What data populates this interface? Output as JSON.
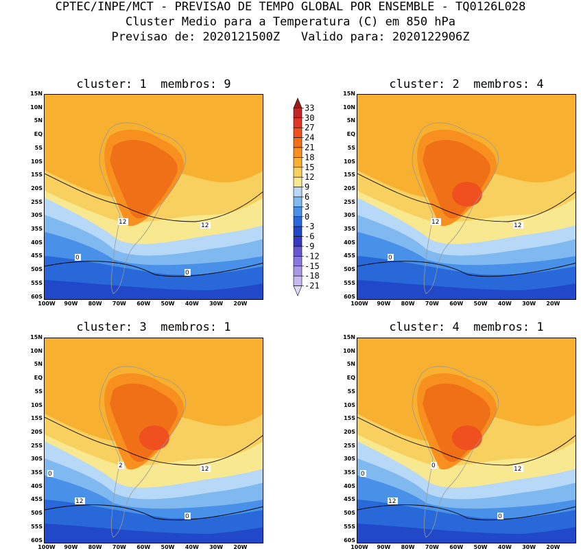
{
  "header": {
    "line1": "CPTEC/INPE/MCT - PREVISAO DE TEMPO GLOBAL POR ENSEMBLE - TQ0126L028",
    "line2": "Cluster Medio para a Temperatura (C) em 850 hPa",
    "line3": "Previsao de: 2020121500Z   Valido para: 2020122906Z"
  },
  "panels": [
    {
      "title": "cluster: 1  membros: 9",
      "contours": [
        "12",
        "12",
        "0",
        "0"
      ]
    },
    {
      "title": "cluster: 2  membros: 4",
      "contours": [
        "12",
        "12",
        "0"
      ]
    },
    {
      "title": "cluster: 3  membros: 1",
      "contours": [
        "2",
        "12",
        "12",
        "0",
        "0"
      ]
    },
    {
      "title": "cluster: 4  membros: 1",
      "contours": [
        "0",
        "12",
        "12",
        "0",
        "0"
      ]
    }
  ],
  "lat_labels": [
    "15N",
    "10N",
    "5N",
    "EQ",
    "5S",
    "10S",
    "15S",
    "20S",
    "25S",
    "30S",
    "35S",
    "40S",
    "45S",
    "50S",
    "55S",
    "60S"
  ],
  "lon_labels": [
    "100W",
    "90W",
    "80W",
    "70W",
    "60W",
    "50W",
    "40W",
    "30W",
    "20W"
  ],
  "colorbar": {
    "labels": [
      "33",
      "30",
      "27",
      "24",
      "21",
      "18",
      "15",
      "12",
      "9",
      "6",
      "3",
      "0",
      "-3",
      "-6",
      "-9",
      "-12",
      "-15",
      "-18",
      "-21"
    ],
    "colors": [
      "#a01818",
      "#c02828",
      "#e03828",
      "#f05020",
      "#f07018",
      "#f89020",
      "#f8b030",
      "#f8d060",
      "#f8e890",
      "#b8d8f8",
      "#80b8f0",
      "#4890e8",
      "#2868d8",
      "#2048c8",
      "#3838c0",
      "#6858d0",
      "#8878e0",
      "#a898e8",
      "#c8b8f0",
      "#e0d8f8"
    ]
  }
}
